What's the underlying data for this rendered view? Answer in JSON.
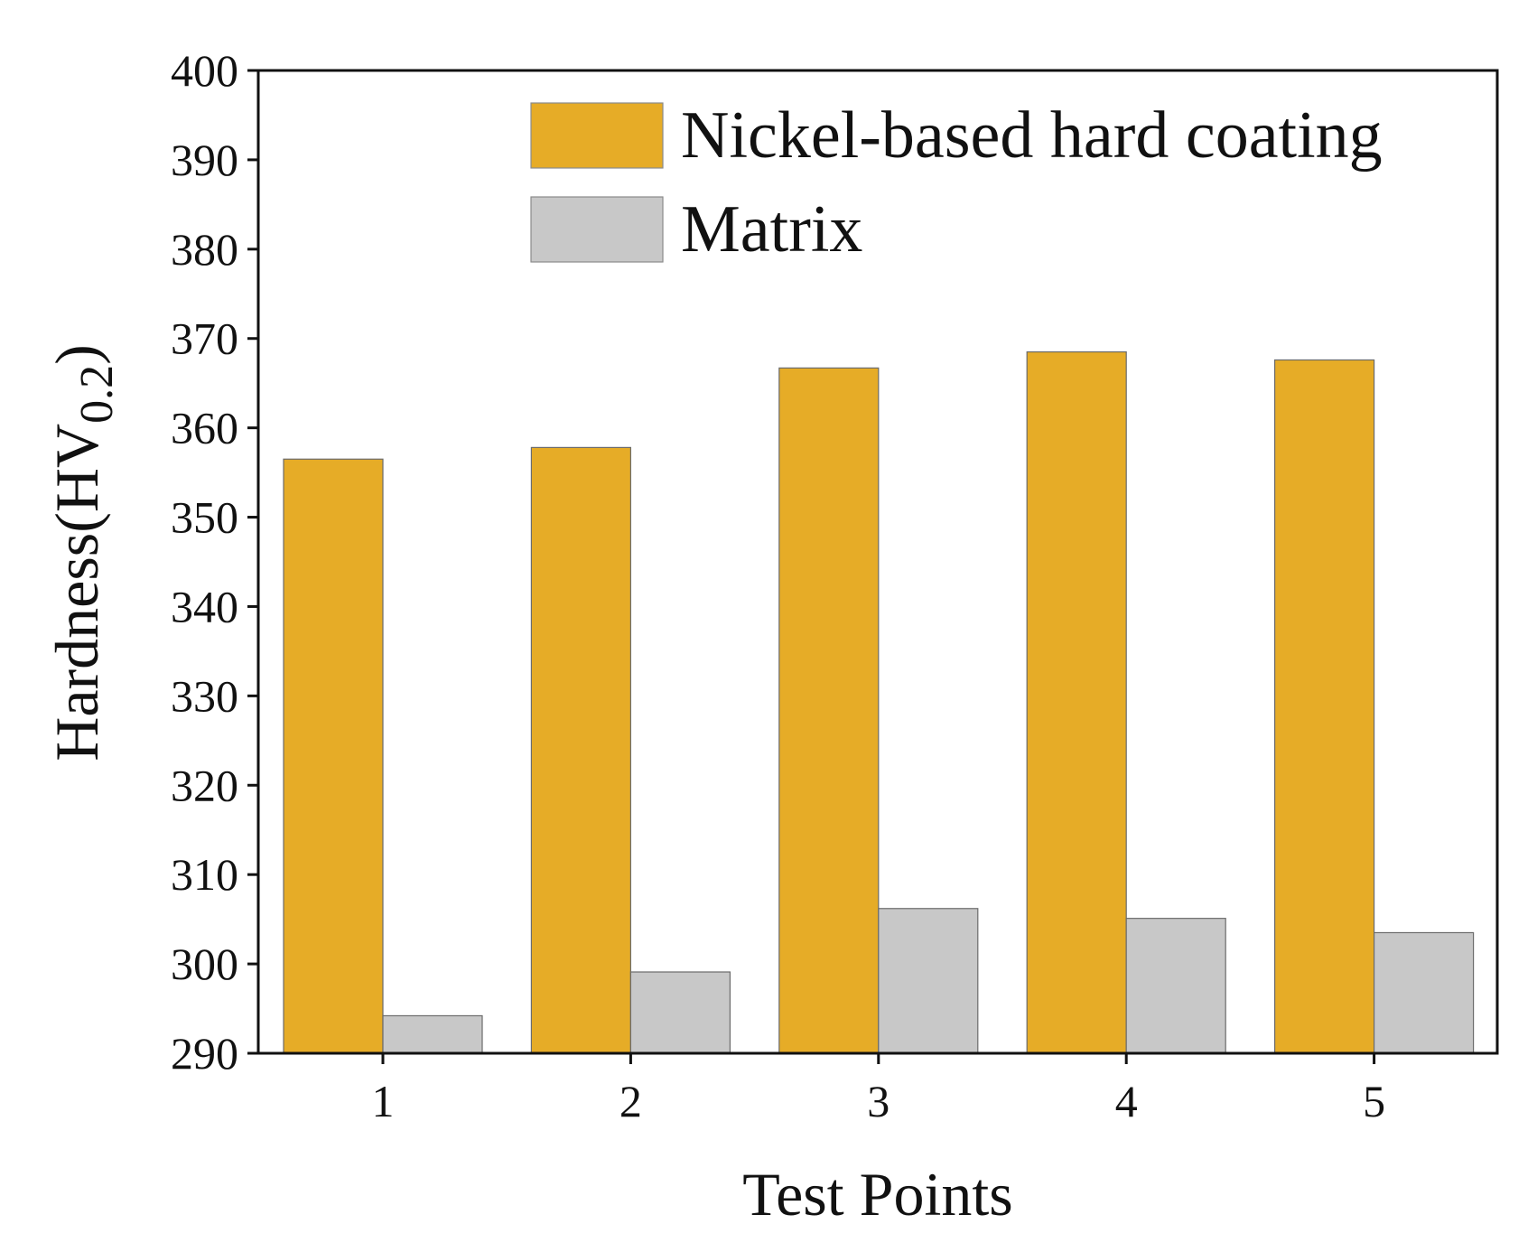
{
  "chart_data": {
    "type": "bar",
    "xlabel": "Test Points",
    "ylabel_main": "Hardness(HV",
    "ylabel_sub": "0.2",
    "ylabel_close": ")",
    "categories": [
      "1",
      "2",
      "3",
      "4",
      "5"
    ],
    "ylim": [
      290,
      400
    ],
    "yticks": [
      290,
      300,
      310,
      320,
      330,
      340,
      350,
      360,
      370,
      380,
      390,
      400
    ],
    "legend_position": "top-right",
    "series": [
      {
        "name": "Nickel-based hard coating",
        "color": "#E6AC27",
        "values": [
          356.5,
          357.8,
          366.7,
          368.5,
          367.6
        ]
      },
      {
        "name": "Matrix",
        "color": "#C8C8C8",
        "values": [
          294.2,
          299.1,
          306.2,
          305.1,
          303.5
        ]
      }
    ]
  }
}
